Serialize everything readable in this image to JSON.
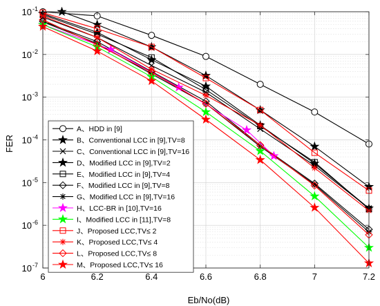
{
  "chart_data": {
    "type": "line",
    "xlabel": "Eb/No(dB)",
    "ylabel": "FER",
    "xlim": [
      6,
      7.2
    ],
    "ylim": [
      1e-07,
      0.1
    ],
    "yscale": "log",
    "grid": true,
    "legend_position": "bottom-left",
    "x_ticks": [
      {
        "value": 6,
        "label": "6"
      },
      {
        "value": 6.2,
        "label": "6.2"
      },
      {
        "value": 6.4,
        "label": "6.4"
      },
      {
        "value": 6.6,
        "label": "6.6"
      },
      {
        "value": 6.8,
        "label": "6.8"
      },
      {
        "value": 7,
        "label": "7"
      },
      {
        "value": 7.2,
        "label": "7.2"
      }
    ],
    "y_ticks": [
      {
        "value": 1e-07,
        "base": "10",
        "exp": "-7"
      },
      {
        "value": 1e-06,
        "base": "10",
        "exp": "-6"
      },
      {
        "value": 1e-05,
        "base": "10",
        "exp": "-5"
      },
      {
        "value": 0.0001,
        "base": "10",
        "exp": "-4"
      },
      {
        "value": 0.001,
        "base": "10",
        "exp": "-3"
      },
      {
        "value": 0.01,
        "base": "10",
        "exp": "-2"
      },
      {
        "value": 0.1,
        "base": "10",
        "exp": "-1"
      }
    ],
    "series": [
      {
        "name": "A、HDD in [9]",
        "color": "#000000",
        "marker": "circle",
        "x": [
          6,
          6.2,
          6.4,
          6.6,
          6.8,
          7,
          7.2
        ],
        "y": [
          0.1,
          0.08,
          0.028,
          0.009,
          0.002,
          0.00045,
          8e-05
        ]
      },
      {
        "name": "B、Conventional LCC in [9],TV=8",
        "color": "#000000",
        "marker": "star",
        "x": [
          6.07,
          6.2,
          6.4,
          6.6,
          6.8,
          7,
          7.2
        ],
        "y": [
          0.1,
          0.05,
          0.015,
          0.0032,
          0.0005,
          7e-05,
          8e-06
        ]
      },
      {
        "name": "C、Conventional LCC in [9],TV=16",
        "color": "#000000",
        "marker": "x",
        "x": [
          6,
          6.2,
          6.4,
          6.6,
          6.8,
          7,
          7.2
        ],
        "y": [
          0.075,
          0.025,
          0.0055,
          0.0013,
          0.00018,
          2.5e-05,
          2.5e-06
        ]
      },
      {
        "name": "D、Modified LCC in [9],TV=2",
        "color": "#000000",
        "marker": "star",
        "x": [
          6,
          6.2,
          6.4,
          6.6,
          6.8,
          7,
          7.2
        ],
        "y": [
          0.09,
          0.033,
          0.0075,
          0.0018,
          0.00022,
          2.8e-05,
          2.5e-06
        ]
      },
      {
        "name": "E、Modified LCC in [9],TV=4",
        "color": "#000000",
        "marker": "square",
        "x": [
          6,
          6.2,
          6.4,
          6.6,
          6.8,
          7,
          7.2
        ],
        "y": [
          0.085,
          0.03,
          0.0085,
          0.0015,
          0.00021,
          3e-05,
          2.4e-06
        ]
      },
      {
        "name": "F、Modified LCC in [9],TV=8",
        "color": "#000000",
        "marker": "diamond",
        "x": [
          6,
          6.2,
          6.4,
          6.6,
          6.8,
          7,
          7.2
        ],
        "y": [
          0.06,
          0.02,
          0.004,
          0.0008,
          7.5e-05,
          9.5e-06,
          8e-07
        ]
      },
      {
        "name": "G、Modified LCC in [9],TV=16",
        "color": "#000000",
        "marker": "asterisk",
        "x": [
          6,
          6.2,
          6.4,
          6.6,
          6.8,
          7,
          7.2
        ],
        "y": [
          0.058,
          0.018,
          0.0035,
          0.0007,
          7e-05,
          9e-06,
          7e-07
        ]
      },
      {
        "name": "H、LCC-BR in [10],TV=16",
        "color": "#ff00ff",
        "marker": "star",
        "x": [
          6,
          6.25,
          6.5,
          6.75,
          6.85
        ],
        "y": [
          0.05,
          0.013,
          0.0017,
          0.00017,
          4.2e-05
        ]
      },
      {
        "name": "I、Modified LCC in [11],TV=8",
        "color": "#00ff00",
        "marker": "star",
        "x": [
          6,
          6.2,
          6.4,
          6.6,
          6.8,
          7,
          7.2
        ],
        "y": [
          0.05,
          0.015,
          0.003,
          0.00045,
          5.5e-05,
          4.8e-06,
          3e-07
        ]
      },
      {
        "name": "J、Proposed LCC,TV≤ 2",
        "color": "#ff0000",
        "marker": "square",
        "x": [
          6,
          6.2,
          6.4,
          6.6,
          6.8,
          7,
          7.2
        ],
        "y": [
          0.095,
          0.04,
          0.015,
          0.0028,
          0.0005,
          5e-05,
          6.5e-06
        ]
      },
      {
        "name": "K、Proposed LCC,TV≤ 4",
        "color": "#ff0000",
        "marker": "asterisk",
        "x": [
          6,
          6.2,
          6.4,
          6.6,
          6.8,
          7,
          7.2
        ],
        "y": [
          0.08,
          0.025,
          0.0045,
          0.0011,
          0.00022,
          2.2e-05,
          2.2e-06
        ]
      },
      {
        "name": "L、Proposed LCC,TV≤ 8",
        "color": "#ff0000",
        "marker": "diamond",
        "x": [
          6,
          6.2,
          6.4,
          6.6,
          6.8,
          7,
          7.2
        ],
        "y": [
          0.065,
          0.017,
          0.0038,
          0.0007,
          7.5e-05,
          8.5e-06,
          6e-07
        ]
      },
      {
        "name": "M、Proposed LCC,TV≤ 16",
        "color": "#ff0000",
        "marker": "star",
        "x": [
          6,
          6.2,
          6.4,
          6.6,
          6.8,
          7,
          7.2
        ],
        "y": [
          0.045,
          0.012,
          0.0024,
          0.0003,
          3.4e-05,
          2.6e-06,
          1.3e-07
        ]
      }
    ]
  }
}
